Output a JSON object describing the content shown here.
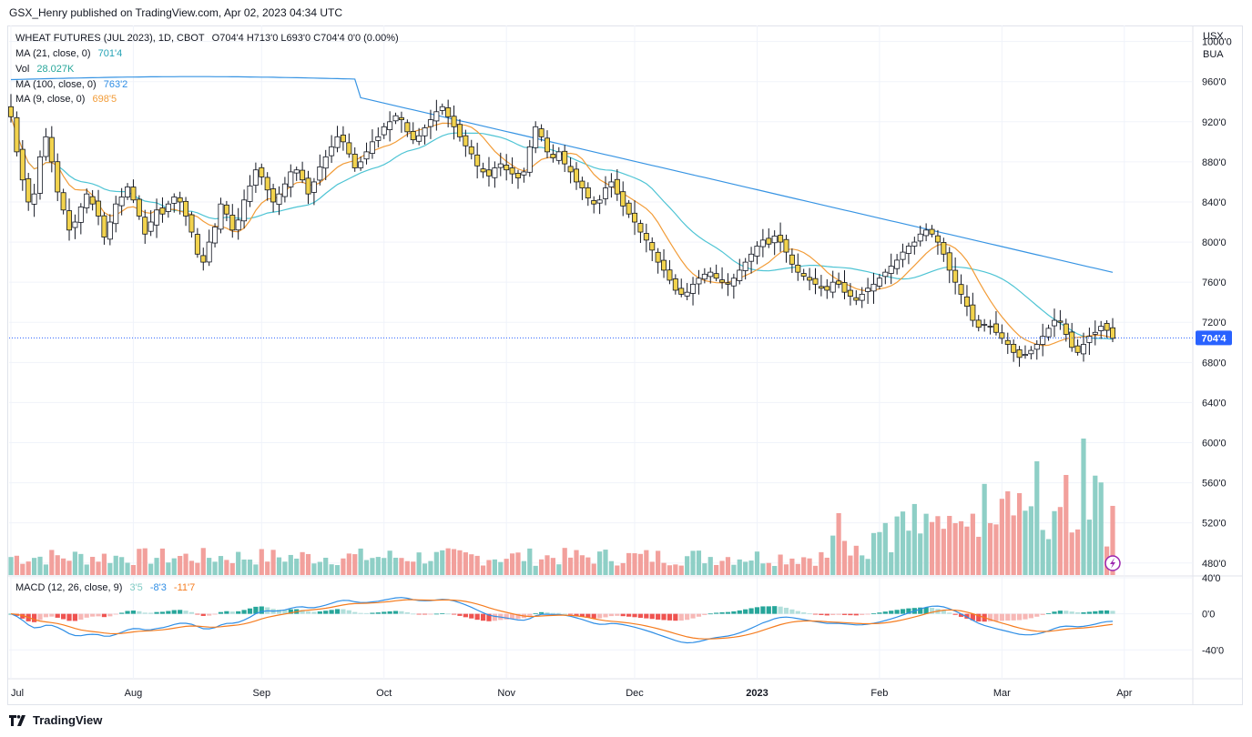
{
  "caption": "GSX_Henry published on TradingView.com, Apr 02, 2023 04:34 UTC",
  "legend": {
    "symbol": "WHEAT FUTURES (JUL 2023), 1D, CBOT",
    "ohlc": "O704'4  H713'0  L693'0  C704'4  0'0 (0.00%)",
    "ma21_label": "MA (21, close, 0)",
    "ma21_value": "701'4",
    "vol_label": "Vol",
    "vol_value": "28.027K",
    "ma100_label": "MA (100, close, 0)",
    "ma100_value": "763'2",
    "ma9_label": "MA (9, close, 0)",
    "ma9_value": "698'5",
    "macd_label": "MACD (12, 26, close, 9)",
    "macd_hist": "3'5",
    "macd_line": "-8'3",
    "macd_signal": "-11'7"
  },
  "axis": {
    "currency": "USX",
    "unit": "BUA",
    "last_price_label": "704'4"
  },
  "footer": {
    "brand": "TradingView"
  },
  "colors": {
    "up": "#ffffff",
    "down": "#f2d34d",
    "ma21": "#4ec4d4",
    "ma100": "#3794e3",
    "ma9": "#f29c38",
    "vol_up": "#8ecfc6",
    "vol_down": "#f2a09c",
    "macd": "#2f8ee5",
    "signal": "#f57c1f",
    "hist_pos_strong": "#26a69a",
    "hist_pos_weak": "#b2dfdb",
    "hist_neg_strong": "#ef5350",
    "hist_neg_weak": "#f7b8b6"
  },
  "chart_data": {
    "type": "candlestick",
    "title": "WHEAT FUTURES (JUL 2023), 1D, CBOT",
    "xlabel": "",
    "ylabel": "USX/BUA",
    "ylim": [
      468,
      1016
    ],
    "y_ticks": [
      "1000'0",
      "960'0",
      "920'0",
      "880'0",
      "840'0",
      "800'0",
      "760'0",
      "720'0",
      "680'0",
      "640'0",
      "600'0",
      "560'0",
      "520'0",
      "480'0"
    ],
    "x_ticks": [
      "Jul",
      "Aug",
      "Sep",
      "Oct",
      "Nov",
      "Dec",
      "2023",
      "Feb",
      "Mar",
      "Apr"
    ],
    "macd_ticks": [
      "40'0",
      "0'0",
      "-40'0"
    ],
    "macd_ylim": [
      -72,
      42
    ],
    "close_series": [
      925,
      890,
      862,
      840,
      848,
      885,
      905,
      880,
      850,
      832,
      812,
      820,
      835,
      848,
      838,
      826,
      805,
      820,
      838,
      845,
      855,
      842,
      826,
      808,
      820,
      832,
      828,
      838,
      845,
      840,
      826,
      810,
      788,
      780,
      800,
      815,
      838,
      828,
      812,
      822,
      842,
      856,
      872,
      865,
      852,
      840,
      848,
      858,
      870,
      872,
      862,
      848,
      860,
      875,
      885,
      895,
      905,
      900,
      888,
      874,
      880,
      890,
      900,
      905,
      915,
      920,
      926,
      922,
      910,
      902,
      906,
      914,
      922,
      930,
      935,
      925,
      915,
      905,
      896,
      888,
      876,
      870,
      866,
      874,
      878,
      872,
      868,
      864,
      870,
      895,
      915,
      905,
      890,
      884,
      890,
      878,
      870,
      860,
      854,
      844,
      838,
      842,
      854,
      860,
      848,
      836,
      828,
      820,
      810,
      802,
      792,
      780,
      772,
      762,
      752,
      748,
      750,
      758,
      764,
      768,
      770,
      764,
      760,
      758,
      764,
      772,
      780,
      788,
      796,
      802,
      798,
      806,
      800,
      790,
      778,
      770,
      766,
      762,
      758,
      754,
      752,
      760,
      758,
      750,
      746,
      742,
      748,
      754,
      758,
      764,
      770,
      776,
      782,
      790,
      796,
      800,
      808,
      812,
      808,
      800,
      788,
      772,
      760,
      748,
      736,
      722,
      715,
      718,
      716,
      710,
      704,
      698,
      690,
      685,
      688,
      692,
      698,
      706,
      714,
      722,
      720,
      708,
      695,
      690,
      698,
      706,
      710,
      716,
      712,
      704
    ]
  }
}
